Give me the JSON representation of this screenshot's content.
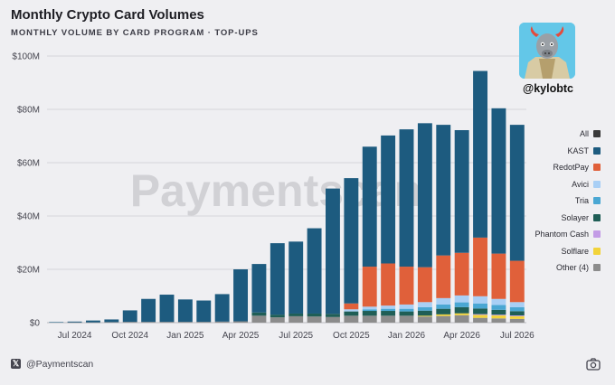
{
  "header": {
    "title": "Monthly Crypto Card Volumes",
    "subtitle": "MONTHLY VOLUME BY CARD PROGRAM · TOP-UPS"
  },
  "profile": {
    "handle": "@kylobtc",
    "avatar_icon": "bull-avatar-icon"
  },
  "watermark": "Paymentscan",
  "footer": {
    "handle": "@Paymentscan",
    "x_icon": "x-logo-icon",
    "camera_icon": "camera-icon"
  },
  "legend": [
    {
      "label": "All",
      "color": "#3a3a3a"
    },
    {
      "label": "KAST",
      "color": "#1d5b7f"
    },
    {
      "label": "RedotPay",
      "color": "#e0603a"
    },
    {
      "label": "Avici",
      "color": "#a9cff5"
    },
    {
      "label": "Tria",
      "color": "#4aa7d3"
    },
    {
      "label": "Solayer",
      "color": "#1f5e56"
    },
    {
      "label": "Phantom Cash",
      "color": "#c39ce6"
    },
    {
      "label": "Solflare",
      "color": "#f2d33a"
    },
    {
      "label": "Other (4)",
      "color": "#8c8c8c"
    }
  ],
  "chart_data": {
    "type": "bar",
    "stacked": true,
    "title": "Monthly Crypto Card Volumes",
    "subtitle": "MONTHLY VOLUME BY CARD PROGRAM · TOP-UPS",
    "x_tick_labels": [
      "Jul 2024",
      "Oct 2024",
      "Jan 2025",
      "Apr 2025",
      "Jul 2025",
      "Oct 2025",
      "Jan 2026",
      "Apr 2026",
      "Jul 2026"
    ],
    "y_tick_labels": [
      "$0",
      "$20M",
      "$40M",
      "$60M",
      "$80M",
      "$100M"
    ],
    "ylim": [
      0,
      100
    ],
    "y_unit": "$M",
    "grid": true,
    "legend_position": "right",
    "categories": [
      "Jun 2024",
      "Jul 2024",
      "Aug 2024",
      "Sep 2024",
      "Oct 2024",
      "Nov 2024",
      "Dec 2024",
      "Jan 2025",
      "Feb 2025",
      "Mar 2025",
      "Apr 2025",
      "May 2025",
      "Jun 2025",
      "Jul 2025",
      "Aug 2025",
      "Sep 2025",
      "Oct 2025",
      "Nov 2025",
      "Dec 2025",
      "Jan 2026",
      "Feb 2026",
      "Mar 2026",
      "Apr 2026",
      "May 2026",
      "Jun 2026",
      "Jul 2026"
    ],
    "series": [
      {
        "name": "Other (4)",
        "color": "#8c8c8c",
        "values": [
          0,
          0.1,
          0.1,
          0.2,
          0.3,
          0.3,
          0.3,
          0.3,
          0.3,
          0.4,
          0.5,
          2.6,
          2.0,
          2.4,
          2.3,
          2.1,
          2.6,
          2.6,
          2.6,
          2.6,
          2.3,
          2.5,
          2.8,
          1.8,
          1.6,
          1.4
        ]
      },
      {
        "name": "Solflare",
        "color": "#f2d33a",
        "values": [
          0,
          0,
          0,
          0,
          0,
          0,
          0,
          0,
          0,
          0,
          0,
          0,
          0,
          0,
          0,
          0,
          0,
          0,
          0,
          0,
          0.3,
          0.6,
          0.7,
          1.1,
          1.1,
          1.0
        ]
      },
      {
        "name": "Phantom Cash",
        "color": "#c39ce6",
        "values": [
          0,
          0,
          0,
          0,
          0,
          0,
          0,
          0,
          0,
          0,
          0,
          0,
          0,
          0,
          0,
          0,
          0,
          0,
          0,
          0,
          0,
          0,
          0,
          0.3,
          0.3,
          0.3
        ]
      },
      {
        "name": "Solayer",
        "color": "#1f5e56",
        "values": [
          0,
          0,
          0,
          0,
          0,
          0,
          0,
          0,
          0,
          0,
          0,
          1.2,
          1.0,
          1.0,
          1.1,
          1.2,
          1.6,
          1.8,
          1.8,
          1.6,
          1.9,
          2.1,
          2.3,
          2.1,
          1.8,
          1.6
        ]
      },
      {
        "name": "Tria",
        "color": "#4aa7d3",
        "values": [
          0,
          0,
          0,
          0,
          0,
          0,
          0,
          0,
          0,
          0,
          0,
          0,
          0,
          0,
          0,
          0,
          0,
          0.6,
          0.8,
          1.0,
          1.3,
          1.6,
          1.8,
          1.9,
          1.8,
          1.5
        ]
      },
      {
        "name": "Avici",
        "color": "#a9cff5",
        "values": [
          0,
          0,
          0,
          0,
          0,
          0,
          0,
          0,
          0,
          0,
          0,
          0,
          0,
          0,
          0,
          0,
          0.8,
          1.0,
          1.2,
          1.6,
          1.9,
          2.4,
          2.6,
          2.7,
          2.3,
          1.9
        ]
      },
      {
        "name": "RedotPay",
        "color": "#e0603a",
        "values": [
          0,
          0,
          0,
          0,
          0,
          0,
          0,
          0,
          0,
          0,
          0,
          0,
          0,
          0,
          0,
          0,
          2.2,
          15.0,
          15.8,
          14.2,
          13.1,
          16.0,
          16.0,
          22.0,
          17.0,
          15.5
        ]
      },
      {
        "name": "KAST",
        "color": "#1d5b7f",
        "values": [
          0.2,
          0.3,
          0.7,
          1.0,
          4.3,
          8.6,
          10.2,
          8.4,
          8.0,
          10.3,
          19.5,
          18.2,
          26.8,
          27.0,
          32.0,
          47.0,
          47.0,
          45.0,
          48.0,
          51.5,
          54.0,
          49.0,
          46.0,
          62.5,
          54.5,
          51.0
        ]
      }
    ]
  }
}
